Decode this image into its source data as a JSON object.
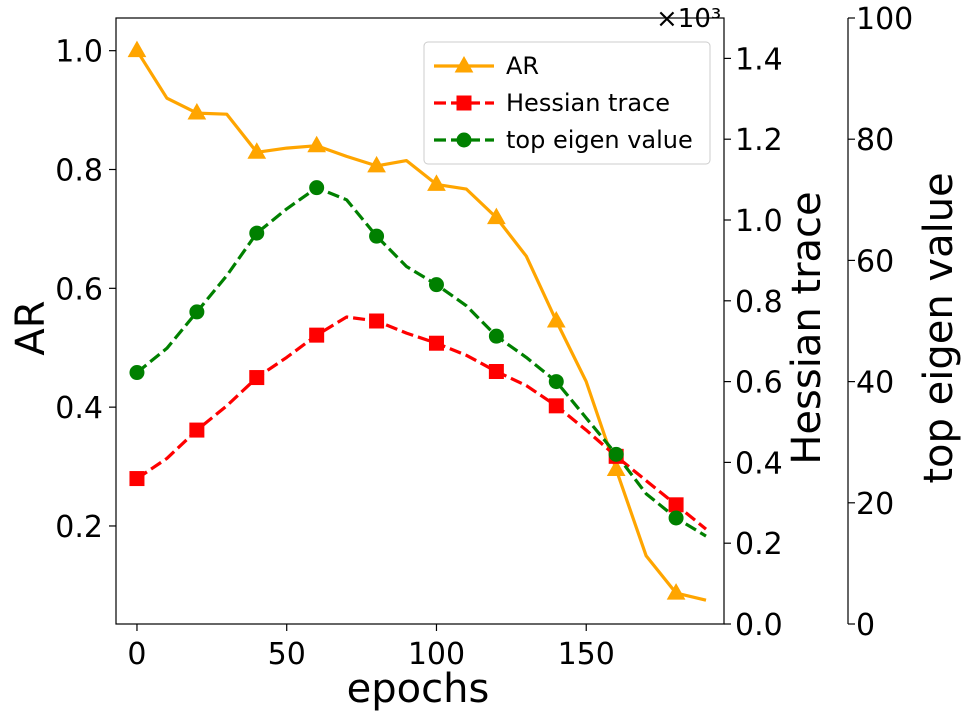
{
  "chart_data": {
    "type": "line",
    "xlabel": "epochs",
    "ylabel": "AR",
    "y2label": "Hessian trace",
    "y2offset": "×10³",
    "y3label": "top eigen value",
    "xlim": [
      -7,
      196
    ],
    "xticks": [
      0,
      50,
      100,
      150
    ],
    "ylim": [
      0.035,
      1.055
    ],
    "yticks": [
      0.2,
      0.4,
      0.6,
      0.8,
      1.0
    ],
    "y2lim": [
      0.0,
      1.5
    ],
    "y2ticks": [
      0.0,
      0.2,
      0.4,
      0.6,
      0.8,
      1.0,
      1.2,
      1.4
    ],
    "y3lim": [
      0,
      100
    ],
    "y3ticks": [
      0,
      20,
      40,
      60,
      80,
      100
    ],
    "legend_position": "top-right",
    "series": [
      {
        "name": "AR",
        "axis": "left",
        "color": "#ffa500",
        "linestyle": "solid",
        "marker": "triangle",
        "x": [
          0,
          10,
          20,
          30,
          40,
          50,
          60,
          70,
          80,
          90,
          100,
          110,
          120,
          130,
          140,
          150,
          160,
          170,
          180,
          190
        ],
        "y": [
          1.0,
          0.92,
          0.895,
          0.893,
          0.829,
          0.836,
          0.84,
          0.822,
          0.806,
          0.815,
          0.775,
          0.767,
          0.719,
          0.654,
          0.545,
          0.443,
          0.295,
          0.15,
          0.087,
          0.075
        ],
        "marker_indices": [
          0,
          2,
          4,
          6,
          8,
          10,
          12,
          14,
          16,
          18
        ]
      },
      {
        "name": "Hessian trace",
        "axis": "right",
        "color": "#ff0000",
        "linestyle": "dashed",
        "marker": "square",
        "x": [
          0,
          10,
          20,
          30,
          40,
          50,
          60,
          70,
          80,
          90,
          100,
          110,
          120,
          130,
          140,
          150,
          160,
          170,
          180,
          190
        ],
        "y": [
          0.36,
          0.41,
          0.48,
          0.54,
          0.61,
          0.66,
          0.715,
          0.76,
          0.75,
          0.72,
          0.695,
          0.665,
          0.625,
          0.59,
          0.54,
          0.48,
          0.415,
          0.355,
          0.295,
          0.235
        ],
        "marker_indices": [
          0,
          2,
          4,
          6,
          8,
          10,
          12,
          14,
          16,
          18
        ]
      },
      {
        "name": "top eigen value",
        "axis": "right2",
        "color": "#008000",
        "linestyle": "dashed",
        "marker": "circle",
        "x": [
          0,
          10,
          20,
          30,
          40,
          50,
          60,
          70,
          80,
          90,
          100,
          110,
          120,
          130,
          140,
          150,
          160,
          170,
          180,
          190
        ],
        "y": [
          41.5,
          45.5,
          51.5,
          57.5,
          64.5,
          68.5,
          72.0,
          70.0,
          64.0,
          59.0,
          56.0,
          52.5,
          47.5,
          44.0,
          40.0,
          34.0,
          28.0,
          21.5,
          17.5,
          14.5
        ],
        "marker_indices": [
          0,
          2,
          4,
          6,
          8,
          10,
          12,
          14,
          16,
          18
        ]
      }
    ]
  }
}
